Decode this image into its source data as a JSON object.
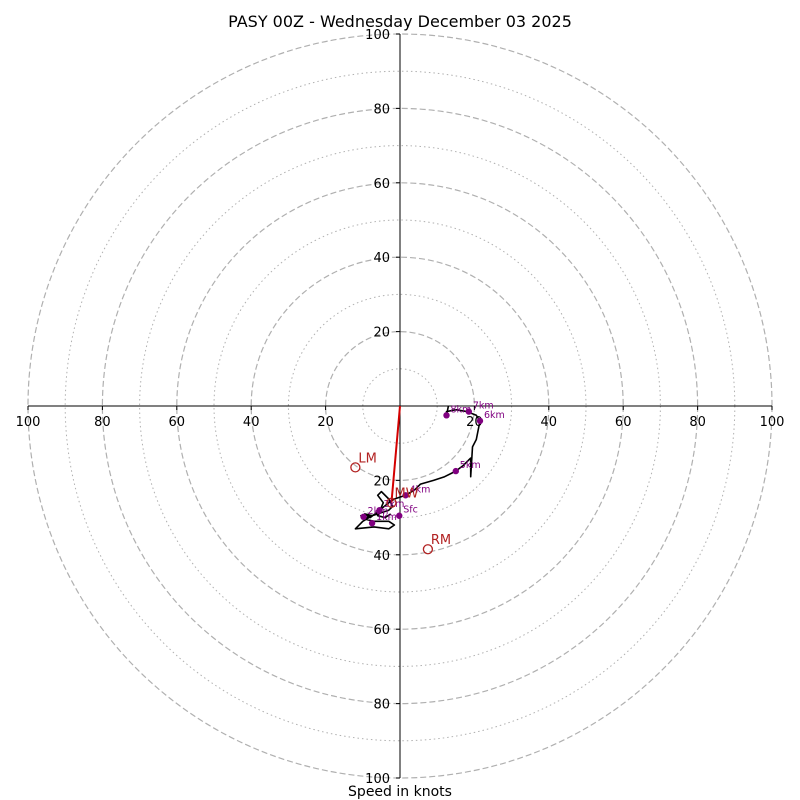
{
  "chart_data": {
    "type": "hodograph",
    "title": "PASY 00Z - Wednesday December 03 2025",
    "xlabel": "Speed in knots",
    "max_speed": 100,
    "major_rings": [
      20,
      40,
      60,
      80,
      100
    ],
    "minor_rings": [
      10,
      30,
      50,
      70,
      90
    ],
    "tick_labels": [
      "20",
      "40",
      "60",
      "80",
      "100"
    ],
    "colors": {
      "profile": "#000000",
      "markers": "#800080",
      "storm": "#b22222",
      "mean_wind": "#d40000",
      "grid": "#b0b0b0",
      "axis": "#000000"
    },
    "profile": [
      [
        -2.5,
        -29
      ],
      [
        -4,
        -30
      ],
      [
        -6,
        -29.5
      ],
      [
        -4.5,
        -26
      ],
      [
        -6,
        -24
      ],
      [
        -5,
        -23
      ],
      [
        -3,
        -25
      ],
      [
        -2,
        -27
      ],
      [
        -3,
        -28
      ],
      [
        -6,
        -29
      ],
      [
        -9,
        -30
      ],
      [
        -10.5,
        -29.5
      ],
      [
        -9,
        -30.5
      ],
      [
        -7,
        -31
      ],
      [
        -3,
        -31
      ],
      [
        -1.5,
        -32
      ],
      [
        -3,
        -33
      ],
      [
        -7,
        -32.5
      ],
      [
        -12,
        -33
      ],
      [
        -10,
        -31
      ],
      [
        -7.5,
        -29.5
      ],
      [
        -9.5,
        -29
      ],
      [
        -8,
        -30
      ],
      [
        -5.5,
        -28
      ],
      [
        -3,
        -26
      ],
      [
        -1.5,
        -25
      ],
      [
        1.5,
        -24
      ],
      [
        4,
        -22.5
      ],
      [
        5.5,
        -21
      ],
      [
        9,
        -20
      ],
      [
        12,
        -19
      ],
      [
        15,
        -17.5
      ],
      [
        17,
        -16
      ],
      [
        19,
        -14
      ],
      [
        19,
        -19
      ],
      [
        19.5,
        -11
      ],
      [
        20.5,
        -9
      ],
      [
        21.5,
        -4
      ],
      [
        20.5,
        -2.5
      ],
      [
        18,
        -1.5
      ],
      [
        15,
        -1
      ],
      [
        12.5,
        -1.5
      ],
      [
        12.5,
        -2.5
      ],
      [
        13,
        0
      ]
    ],
    "levels": [
      {
        "label": "Sfc",
        "u": -0.2,
        "v": -29.5
      },
      {
        "label": "2km",
        "u": -9.8,
        "v": -29.8
      },
      {
        "label": "3km",
        "u": -5.5,
        "v": -28
      },
      {
        "label": "4km",
        "u": 1.5,
        "v": -24
      },
      {
        "label": "5km",
        "u": 15,
        "v": -17.5
      },
      {
        "label": "6km",
        "u": 21.5,
        "v": -4
      },
      {
        "label": "7km",
        "u": 18.5,
        "v": -1.5
      },
      {
        "label": "8km",
        "u": 12.5,
        "v": -2.5
      },
      {
        "label": "1km",
        "u": -7.5,
        "v": -31.5
      }
    ],
    "storm_motion": [
      {
        "label": "LM",
        "u": -12,
        "v": -16.5
      },
      {
        "label": "RM",
        "u": 7.5,
        "v": -38.5
      },
      {
        "label": "MW",
        "u": -2.3,
        "v": -26
      }
    ],
    "mean_wind_vector": {
      "from": [
        0,
        0
      ],
      "to": [
        -2.3,
        -26
      ]
    }
  }
}
